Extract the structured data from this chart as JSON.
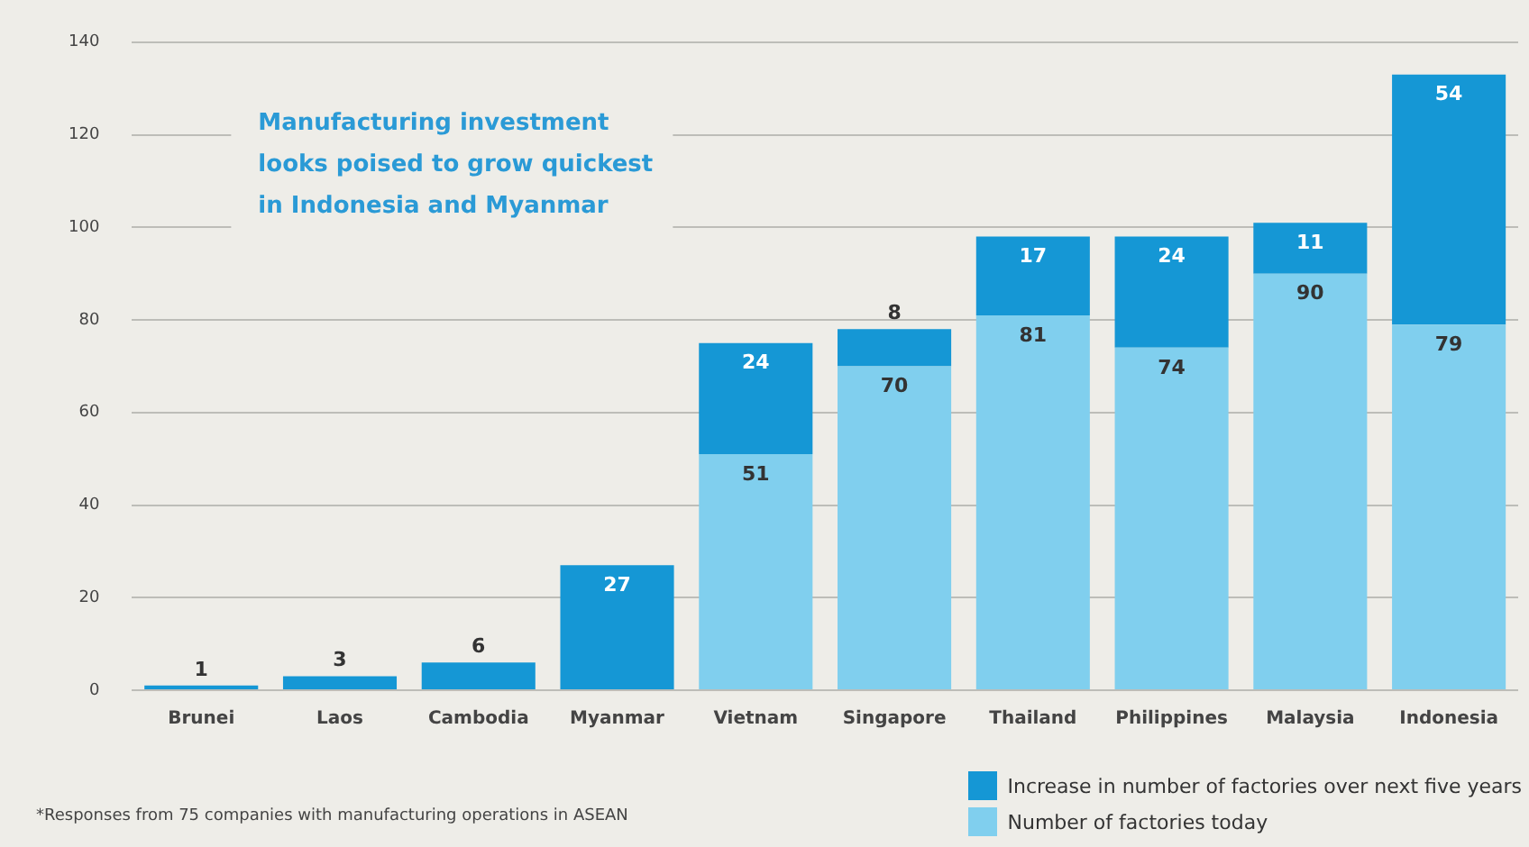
{
  "chart_data": {
    "type": "bar",
    "stacked": true,
    "categories": [
      "Brunei",
      "Laos",
      "Cambodia",
      "Myanmar",
      "Vietnam",
      "Singapore",
      "Thailand",
      "Philippines",
      "Malaysia",
      "Indonesia"
    ],
    "series": [
      {
        "name": "Number of factories today",
        "color": "#80cfee",
        "values": [
          null,
          null,
          null,
          null,
          51,
          70,
          81,
          74,
          90,
          79
        ]
      },
      {
        "name": "Increase in number of factories over next five years",
        "color": "#1597d5",
        "values": [
          1,
          3,
          6,
          27,
          24,
          8,
          17,
          24,
          11,
          54
        ]
      }
    ],
    "ylim": [
      0,
      140
    ],
    "yticks": [
      0,
      20,
      40,
      60,
      80,
      100,
      120,
      140
    ],
    "grid": "y",
    "legend": "bottom right",
    "data_labels": true,
    "annotations": [
      "Manufacturing investment looks poised to grow quickest in Indonesia and Myanmar",
      "*Responses from 75 companies with manufacturing operations in ASEAN"
    ]
  }
}
